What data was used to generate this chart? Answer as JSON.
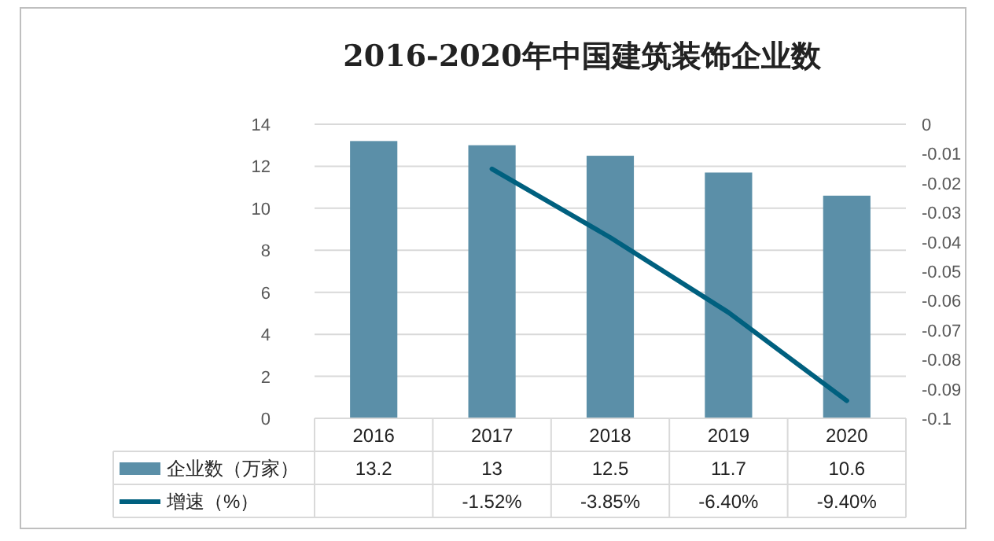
{
  "chart_data": {
    "type": "bar",
    "title": "2016-2020年中国建筑装饰企业数",
    "categories": [
      "2016",
      "2017",
      "2018",
      "2019",
      "2020"
    ],
    "series": [
      {
        "name": "企业数（万家）",
        "color": "#5b8fa8",
        "values": [
          13.2,
          13,
          12.5,
          11.7,
          10.6
        ],
        "value_labels": [
          "13.2",
          "13",
          "12.5",
          "11.7",
          "10.6"
        ]
      },
      {
        "name": "增速（%）",
        "type": "line",
        "axis": "y2",
        "color": "#00607f",
        "values": [
          null,
          -0.0152,
          -0.0385,
          -0.064,
          -0.094
        ],
        "value_labels": [
          null,
          "-1.52%",
          "-3.85%",
          "-6.40%",
          "-9.40%"
        ]
      }
    ],
    "ylim": [
      0,
      14
    ],
    "yticks": [
      0,
      2,
      4,
      6,
      8,
      10,
      12,
      14
    ],
    "y2lim": [
      -0.1,
      0
    ],
    "y2ticks": [
      0,
      -0.01,
      -0.02,
      -0.03,
      -0.04,
      -0.05,
      -0.06,
      -0.07,
      -0.08,
      -0.09,
      -0.1
    ],
    "grid": "y",
    "legend": "bottom",
    "marker": "none",
    "line_style": "solid"
  }
}
